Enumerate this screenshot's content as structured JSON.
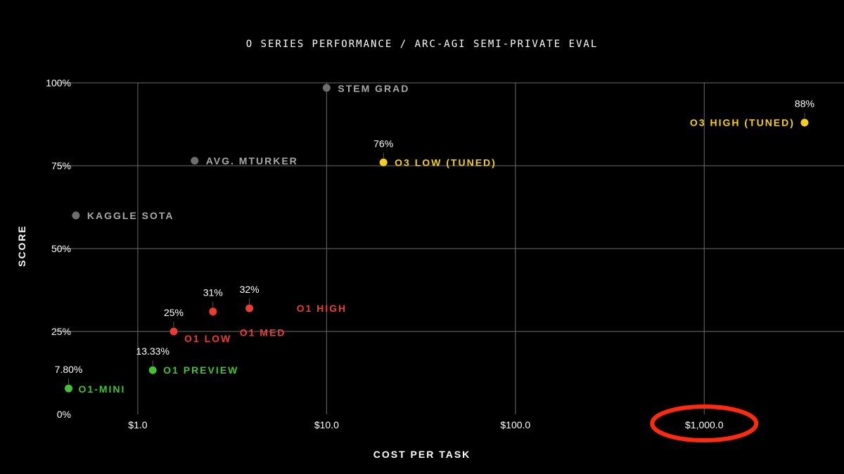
{
  "chart_data": {
    "type": "scatter",
    "title": "O SERIES PERFORMANCE / ARC-AGI SEMI-PRIVATE EVAL",
    "xlabel": "COST PER TASK",
    "ylabel": "SCORE",
    "x_scale": "log",
    "xlim": [
      0.37,
      5500
    ],
    "ylim": [
      0,
      100
    ],
    "grid": true,
    "x_ticks": [
      {
        "value": 1,
        "label": "$1.0"
      },
      {
        "value": 10,
        "label": "$10.0"
      },
      {
        "value": 100,
        "label": "$100.0"
      },
      {
        "value": 1000,
        "label": "$1,000.0"
      }
    ],
    "y_ticks": [
      {
        "value": 0,
        "label": "0%"
      },
      {
        "value": 25,
        "label": "25%"
      },
      {
        "value": 50,
        "label": "50%"
      },
      {
        "value": 75,
        "label": "75%"
      },
      {
        "value": 100,
        "label": "100%"
      }
    ],
    "colors": {
      "human": "#6e6e6e",
      "human_label": "#a8a8a8",
      "o1": "#ee3b33",
      "o3": "#f5cf1b",
      "mini": "#43c233",
      "highlight": "#ff2a10"
    },
    "highlight_tick": "$1,000.0",
    "points": [
      {
        "name": "O1-MINI",
        "x": 0.43,
        "y": 7.8,
        "value_label": "7.80%",
        "group": "mini"
      },
      {
        "name": "O1 PREVIEW",
        "x": 1.2,
        "y": 13.33,
        "value_label": "13.33%",
        "group": "mini"
      },
      {
        "name": "O1 LOW",
        "x": 1.55,
        "y": 25,
        "value_label": "25%",
        "group": "o1"
      },
      {
        "name": "O1 MED",
        "x": 2.5,
        "y": 31,
        "value_label": "31%",
        "group": "o1"
      },
      {
        "name": "O1 HIGH",
        "x": 3.9,
        "y": 32,
        "value_label": "32%",
        "group": "o1"
      },
      {
        "name": "O3 LOW (TUNED)",
        "x": 20,
        "y": 76,
        "value_label": "76%",
        "group": "o3"
      },
      {
        "name": "O3 HIGH (TUNED)",
        "x": 3400,
        "y": 88,
        "value_label": "88%",
        "group": "o3"
      },
      {
        "name": "KAGGLE SOTA",
        "x": 0.47,
        "y": 60,
        "value_label": "",
        "group": "human"
      },
      {
        "name": "AVG. MTURKER",
        "x": 2.0,
        "y": 76.5,
        "value_label": "",
        "group": "human"
      },
      {
        "name": "STEM GRAD",
        "x": 10,
        "y": 98.5,
        "value_label": "",
        "group": "human"
      }
    ]
  }
}
